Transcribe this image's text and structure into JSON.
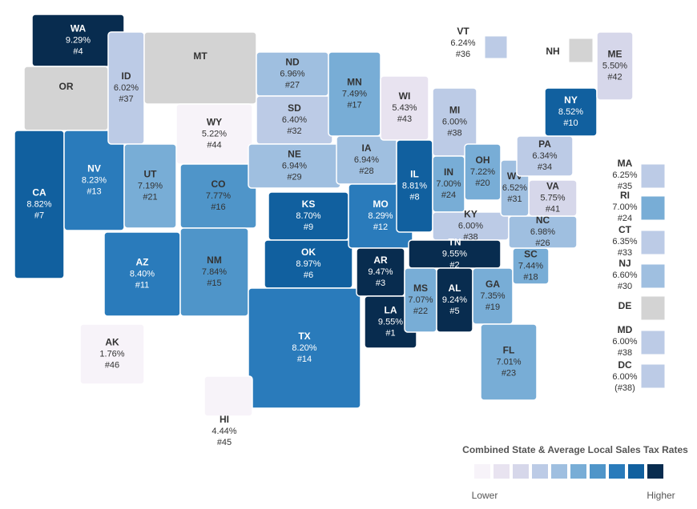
{
  "legend": {
    "title": "Combined State & Average Local Sales Tax Rates",
    "low": "Lower",
    "high": "Higher",
    "colors": [
      "#f7f3f9",
      "#e8e3f0",
      "#d6d7ea",
      "#bccbe6",
      "#9fbfe0",
      "#78add6",
      "#4f95c9",
      "#2a7bbb",
      "#11609f",
      "#082c4f"
    ]
  },
  "states": [
    {
      "abbr": "WA",
      "rate": "9.29%",
      "rank": "#4",
      "color": "#082c4f"
    },
    {
      "abbr": "OR",
      "color": "#d3d3d3"
    },
    {
      "abbr": "CA",
      "rate": "8.82%",
      "rank": "#7",
      "color": "#11609f"
    },
    {
      "abbr": "NV",
      "rate": "8.23%",
      "rank": "#13",
      "color": "#2a7bbb"
    },
    {
      "abbr": "ID",
      "rate": "6.02%",
      "rank": "#37",
      "color": "#bccbe6"
    },
    {
      "abbr": "MT",
      "color": "#d3d3d3"
    },
    {
      "abbr": "WY",
      "rate": "5.22%",
      "rank": "#44",
      "color": "#f7f3f9"
    },
    {
      "abbr": "UT",
      "rate": "7.19%",
      "rank": "#21",
      "color": "#78add6"
    },
    {
      "abbr": "AZ",
      "rate": "8.40%",
      "rank": "#11",
      "color": "#2a7bbb"
    },
    {
      "abbr": "CO",
      "rate": "7.77%",
      "rank": "#16",
      "color": "#4f95c9"
    },
    {
      "abbr": "NM",
      "rate": "7.84%",
      "rank": "#15",
      "color": "#4f95c9"
    },
    {
      "abbr": "ND",
      "rate": "6.96%",
      "rank": "#27",
      "color": "#9fbfe0"
    },
    {
      "abbr": "SD",
      "rate": "6.40%",
      "rank": "#32",
      "color": "#bccbe6"
    },
    {
      "abbr": "NE",
      "rate": "6.94%",
      "rank": "#29",
      "color": "#9fbfe0"
    },
    {
      "abbr": "KS",
      "rate": "8.70%",
      "rank": "#9",
      "color": "#11609f"
    },
    {
      "abbr": "OK",
      "rate": "8.97%",
      "rank": "#6",
      "color": "#11609f"
    },
    {
      "abbr": "TX",
      "rate": "8.20%",
      "rank": "#14",
      "color": "#2a7bbb"
    },
    {
      "abbr": "MN",
      "rate": "7.49%",
      "rank": "#17",
      "color": "#78add6"
    },
    {
      "abbr": "IA",
      "rate": "6.94%",
      "rank": "#28",
      "color": "#9fbfe0"
    },
    {
      "abbr": "MO",
      "rate": "8.29%",
      "rank": "#12",
      "color": "#2a7bbb"
    },
    {
      "abbr": "AR",
      "rate": "9.47%",
      "rank": "#3",
      "color": "#082c4f"
    },
    {
      "abbr": "LA",
      "rate": "9.55%",
      "rank": "#1",
      "color": "#082c4f"
    },
    {
      "abbr": "WI",
      "rate": "5.43%",
      "rank": "#43",
      "color": "#e8e3f0"
    },
    {
      "abbr": "IL",
      "rate": "8.81%",
      "rank": "#8",
      "color": "#11609f"
    },
    {
      "abbr": "MI",
      "rate": "6.00%",
      "rank": "#38",
      "color": "#bccbe6"
    },
    {
      "abbr": "IN",
      "rate": "7.00%",
      "rank": "#24",
      "color": "#78add6"
    },
    {
      "abbr": "OH",
      "rate": "7.22%",
      "rank": "#20",
      "color": "#78add6"
    },
    {
      "abbr": "KY",
      "rate": "6.00%",
      "rank": "#38",
      "color": "#bccbe6"
    },
    {
      "abbr": "TN",
      "rate": "9.55%",
      "rank": "#2",
      "color": "#082c4f"
    },
    {
      "abbr": "MS",
      "rate": "7.07%",
      "rank": "#22",
      "color": "#78add6"
    },
    {
      "abbr": "AL",
      "rate": "9.24%",
      "rank": "#5",
      "color": "#082c4f"
    },
    {
      "abbr": "GA",
      "rate": "7.35%",
      "rank": "#19",
      "color": "#78add6"
    },
    {
      "abbr": "FL",
      "rate": "7.01%",
      "rank": "#23",
      "color": "#78add6"
    },
    {
      "abbr": "SC",
      "rate": "7.44%",
      "rank": "#18",
      "color": "#78add6"
    },
    {
      "abbr": "NC",
      "rate": "6.98%",
      "rank": "#26",
      "color": "#9fbfe0"
    },
    {
      "abbr": "VA",
      "rate": "5.75%",
      "rank": "#41",
      "color": "#d6d7ea"
    },
    {
      "abbr": "WV",
      "rate": "6.52%",
      "rank": "#31",
      "color": "#9fbfe0"
    },
    {
      "abbr": "PA",
      "rate": "6.34%",
      "rank": "#34",
      "color": "#bccbe6"
    },
    {
      "abbr": "NY",
      "rate": "8.52%",
      "rank": "#10",
      "color": "#11609f"
    },
    {
      "abbr": "ME",
      "rate": "5.50%",
      "rank": "#42",
      "color": "#d6d7ea"
    },
    {
      "abbr": "AK",
      "rate": "1.76%",
      "rank": "#46",
      "color": "#f7f3f9"
    },
    {
      "abbr": "HI",
      "rate": "4.44%",
      "rank": "#45",
      "color": "#f7f3f9"
    },
    {
      "abbr": "VT",
      "rate": "6.24%",
      "rank": "#36",
      "color": "#bccbe6"
    },
    {
      "abbr": "NH",
      "color": "#d3d3d3"
    },
    {
      "abbr": "MA",
      "rate": "6.25%",
      "rank": "#35",
      "color": "#bccbe6"
    },
    {
      "abbr": "RI",
      "rate": "7.00%",
      "rank": "#24",
      "color": "#78add6"
    },
    {
      "abbr": "CT",
      "rate": "6.35%",
      "rank": "#33",
      "color": "#bccbe6"
    },
    {
      "abbr": "NJ",
      "rate": "6.60%",
      "rank": "#30",
      "color": "#9fbfe0"
    },
    {
      "abbr": "DE",
      "color": "#d3d3d3"
    },
    {
      "abbr": "MD",
      "rate": "6.00%",
      "rank": "#38",
      "color": "#bccbe6"
    },
    {
      "abbr": "DC",
      "rate": "6.00%",
      "rank": "(#38)",
      "color": "#bccbe6"
    }
  ]
}
